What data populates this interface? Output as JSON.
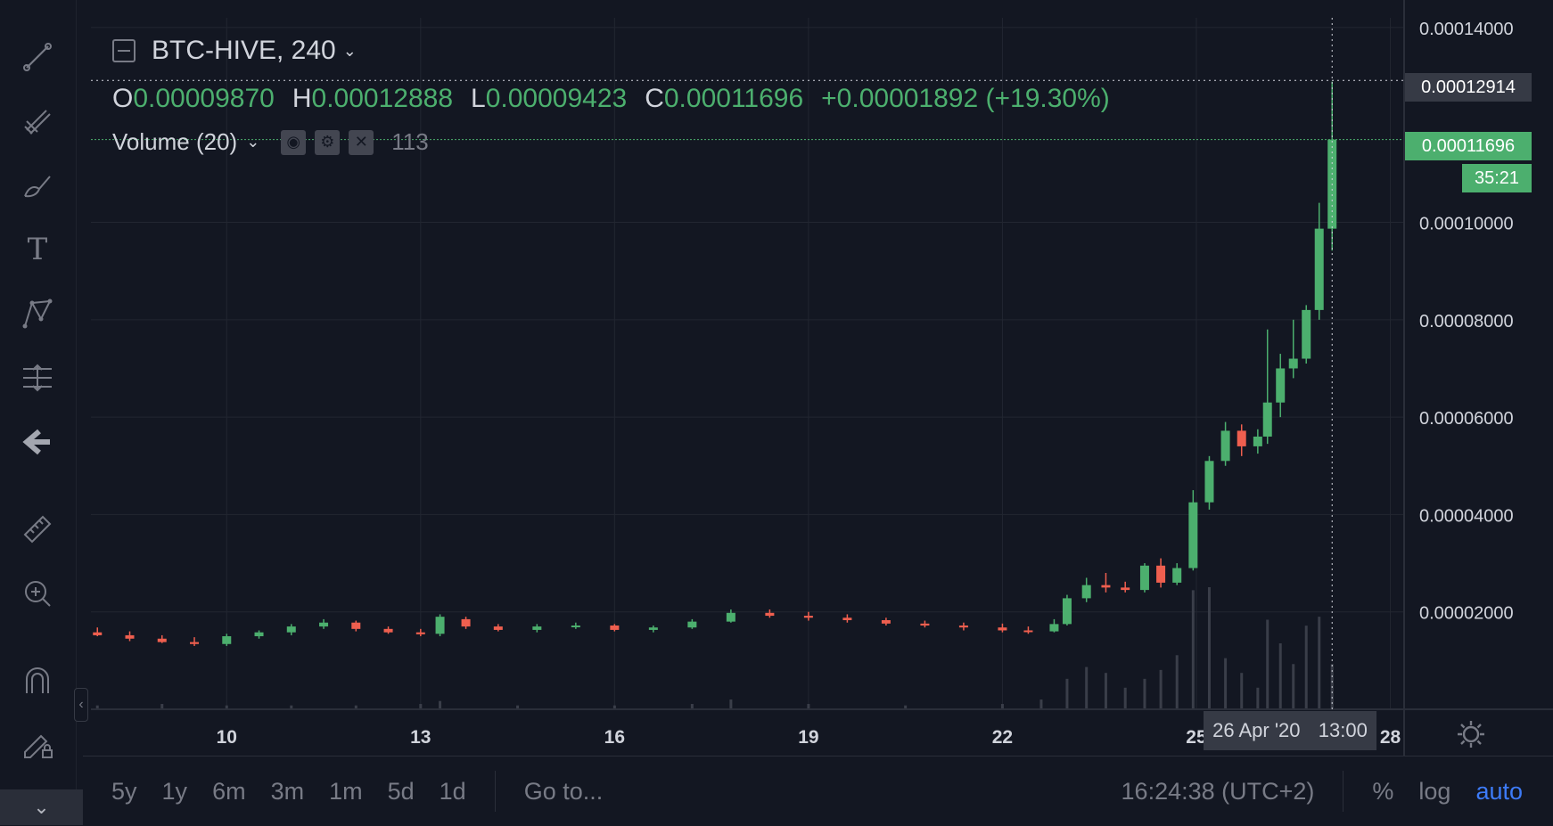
{
  "symbol": {
    "name": "BTC-HIVE, 240"
  },
  "ohlc": {
    "o_label": "O",
    "o": "0.00009870",
    "h_label": "H",
    "h": "0.00012888",
    "l_label": "L",
    "l": "0.00009423",
    "c_label": "C",
    "c": "0.00011696",
    "change": "+0.00001892 (+19.30%)"
  },
  "volume": {
    "label": "Volume (20)",
    "value": "113"
  },
  "price_tags": {
    "crosshair": "0.00012914",
    "last": "0.00011696",
    "countdown": "35:21"
  },
  "crosshair_time": {
    "date": "26 Apr '20",
    "time": "13:00"
  },
  "bottom_bar": {
    "ranges": [
      "5y",
      "1y",
      "6m",
      "3m",
      "1m",
      "5d",
      "1d"
    ],
    "goto": "Go to...",
    "clock": "16:24:38 (UTC+2)",
    "percent": "%",
    "log": "log",
    "auto": "auto"
  },
  "colors": {
    "up": "#4caf6e",
    "down": "#ef5f4f",
    "bg": "#131722",
    "grid": "#222631"
  },
  "icons": [
    "trend-line-icon",
    "pitchfork-icon",
    "brush-icon",
    "text-icon",
    "pattern-icon",
    "measure-icon",
    "back-arrow-icon",
    "ruler-icon",
    "zoom-in-icon",
    "magnet-icon",
    "lock-edit-icon",
    "chevron-down-icon",
    "settings-icon"
  ],
  "chart_data": {
    "type": "candlestick",
    "title": "BTC-HIVE, 240",
    "x_ticks": [
      "10",
      "13",
      "16",
      "19",
      "22",
      "25",
      "28"
    ],
    "y_ticks": [
      "0.00014000",
      "0.00010000",
      "0.00008000",
      "0.00006000",
      "0.00004000",
      "0.00002000"
    ],
    "ylim": [
      0,
      0.000142
    ],
    "x_start": 7.9,
    "x_end": 28.2,
    "candles": [
      {
        "x": 8.0,
        "o": 1.58e-05,
        "h": 1.68e-05,
        "l": 1.5e-05,
        "c": 1.52e-05
      },
      {
        "x": 8.5,
        "o": 1.52e-05,
        "h": 1.6e-05,
        "l": 1.4e-05,
        "c": 1.45e-05
      },
      {
        "x": 9.0,
        "o": 1.45e-05,
        "h": 1.52e-05,
        "l": 1.36e-05,
        "c": 1.38e-05
      },
      {
        "x": 9.5,
        "o": 1.38e-05,
        "h": 1.48e-05,
        "l": 1.3e-05,
        "c": 1.34e-05
      },
      {
        "x": 10.0,
        "o": 1.34e-05,
        "h": 1.55e-05,
        "l": 1.3e-05,
        "c": 1.5e-05
      },
      {
        "x": 10.5,
        "o": 1.5e-05,
        "h": 1.62e-05,
        "l": 1.45e-05,
        "c": 1.58e-05
      },
      {
        "x": 11.0,
        "o": 1.58e-05,
        "h": 1.75e-05,
        "l": 1.52e-05,
        "c": 1.7e-05
      },
      {
        "x": 11.5,
        "o": 1.7e-05,
        "h": 1.85e-05,
        "l": 1.65e-05,
        "c": 1.78e-05
      },
      {
        "x": 12.0,
        "o": 1.78e-05,
        "h": 1.82e-05,
        "l": 1.6e-05,
        "c": 1.65e-05
      },
      {
        "x": 12.5,
        "o": 1.65e-05,
        "h": 1.7e-05,
        "l": 1.55e-05,
        "c": 1.58e-05
      },
      {
        "x": 13.0,
        "o": 1.58e-05,
        "h": 1.65e-05,
        "l": 1.5e-05,
        "c": 1.54e-05
      },
      {
        "x": 13.3,
        "o": 1.55e-05,
        "h": 1.95e-05,
        "l": 1.5e-05,
        "c": 1.9e-05
      },
      {
        "x": 13.7,
        "o": 1.85e-05,
        "h": 1.9e-05,
        "l": 1.65e-05,
        "c": 1.7e-05
      },
      {
        "x": 14.2,
        "o": 1.7e-05,
        "h": 1.75e-05,
        "l": 1.6e-05,
        "c": 1.63e-05
      },
      {
        "x": 14.8,
        "o": 1.63e-05,
        "h": 1.75e-05,
        "l": 1.58e-05,
        "c": 1.7e-05
      },
      {
        "x": 15.4,
        "o": 1.7e-05,
        "h": 1.78e-05,
        "l": 1.65e-05,
        "c": 1.72e-05
      },
      {
        "x": 16.0,
        "o": 1.72e-05,
        "h": 1.75e-05,
        "l": 1.6e-05,
        "c": 1.63e-05
      },
      {
        "x": 16.6,
        "o": 1.63e-05,
        "h": 1.72e-05,
        "l": 1.58e-05,
        "c": 1.68e-05
      },
      {
        "x": 17.2,
        "o": 1.68e-05,
        "h": 1.85e-05,
        "l": 1.65e-05,
        "c": 1.8e-05
      },
      {
        "x": 17.8,
        "o": 1.8e-05,
        "h": 2.05e-05,
        "l": 1.78e-05,
        "c": 1.98e-05
      },
      {
        "x": 18.4,
        "o": 1.98e-05,
        "h": 2.05e-05,
        "l": 1.88e-05,
        "c": 1.92e-05
      },
      {
        "x": 19.0,
        "o": 1.92e-05,
        "h": 2e-05,
        "l": 1.82e-05,
        "c": 1.88e-05
      },
      {
        "x": 19.6,
        "o": 1.88e-05,
        "h": 1.95e-05,
        "l": 1.78e-05,
        "c": 1.83e-05
      },
      {
        "x": 20.2,
        "o": 1.83e-05,
        "h": 1.88e-05,
        "l": 1.72e-05,
        "c": 1.76e-05
      },
      {
        "x": 20.8,
        "o": 1.76e-05,
        "h": 1.82e-05,
        "l": 1.68e-05,
        "c": 1.72e-05
      },
      {
        "x": 21.4,
        "o": 1.72e-05,
        "h": 1.78e-05,
        "l": 1.62e-05,
        "c": 1.68e-05
      },
      {
        "x": 22.0,
        "o": 1.68e-05,
        "h": 1.76e-05,
        "l": 1.58e-05,
        "c": 1.62e-05
      },
      {
        "x": 22.4,
        "o": 1.62e-05,
        "h": 1.7e-05,
        "l": 1.55e-05,
        "c": 1.6e-05
      },
      {
        "x": 22.8,
        "o": 1.6e-05,
        "h": 1.85e-05,
        "l": 1.58e-05,
        "c": 1.75e-05
      },
      {
        "x": 23.0,
        "o": 1.75e-05,
        "h": 2.35e-05,
        "l": 1.72e-05,
        "c": 2.28e-05
      },
      {
        "x": 23.3,
        "o": 2.28e-05,
        "h": 2.7e-05,
        "l": 2.2e-05,
        "c": 2.55e-05
      },
      {
        "x": 23.6,
        "o": 2.55e-05,
        "h": 2.8e-05,
        "l": 2.4e-05,
        "c": 2.5e-05
      },
      {
        "x": 23.9,
        "o": 2.5e-05,
        "h": 2.62e-05,
        "l": 2.4e-05,
        "c": 2.45e-05
      },
      {
        "x": 24.2,
        "o": 2.45e-05,
        "h": 3e-05,
        "l": 2.4e-05,
        "c": 2.95e-05
      },
      {
        "x": 24.45,
        "o": 2.95e-05,
        "h": 3.1e-05,
        "l": 2.5e-05,
        "c": 2.6e-05
      },
      {
        "x": 24.7,
        "o": 2.6e-05,
        "h": 3e-05,
        "l": 2.55e-05,
        "c": 2.9e-05
      },
      {
        "x": 24.95,
        "o": 2.9e-05,
        "h": 4.5e-05,
        "l": 2.85e-05,
        "c": 4.25e-05
      },
      {
        "x": 25.2,
        "o": 4.25e-05,
        "h": 5.2e-05,
        "l": 4.1e-05,
        "c": 5.1e-05
      },
      {
        "x": 25.45,
        "o": 5.1e-05,
        "h": 5.9e-05,
        "l": 5e-05,
        "c": 5.72e-05
      },
      {
        "x": 25.7,
        "o": 5.72e-05,
        "h": 5.85e-05,
        "l": 5.2e-05,
        "c": 5.4e-05
      },
      {
        "x": 25.95,
        "o": 5.4e-05,
        "h": 5.75e-05,
        "l": 5.25e-05,
        "c": 5.6e-05
      },
      {
        "x": 26.1,
        "o": 5.6e-05,
        "h": 7.8e-05,
        "l": 5.45e-05,
        "c": 6.3e-05
      },
      {
        "x": 26.3,
        "o": 6.3e-05,
        "h": 7.3e-05,
        "l": 6e-05,
        "c": 7e-05
      },
      {
        "x": 26.5,
        "o": 7e-05,
        "h": 8e-05,
        "l": 6.8e-05,
        "c": 7.2e-05
      },
      {
        "x": 26.7,
        "o": 7.2e-05,
        "h": 8.3e-05,
        "l": 7.1e-05,
        "c": 8.2e-05
      },
      {
        "x": 26.9,
        "o": 8.2e-05,
        "h": 0.000104,
        "l": 8e-05,
        "c": 9.87e-05
      },
      {
        "x": 27.1,
        "o": 9.87e-05,
        "h": 0.0001289,
        "l": 9.42e-05,
        "c": 0.000117
      }
    ],
    "volumes": [
      {
        "x": 8.0,
        "v": 2
      },
      {
        "x": 9.0,
        "v": 3
      },
      {
        "x": 10.0,
        "v": 2
      },
      {
        "x": 11.0,
        "v": 2
      },
      {
        "x": 12.0,
        "v": 2
      },
      {
        "x": 13.0,
        "v": 3
      },
      {
        "x": 13.3,
        "v": 5
      },
      {
        "x": 14.5,
        "v": 2
      },
      {
        "x": 16.0,
        "v": 2
      },
      {
        "x": 17.2,
        "v": 3
      },
      {
        "x": 17.8,
        "v": 6
      },
      {
        "x": 19.0,
        "v": 3
      },
      {
        "x": 20.5,
        "v": 2
      },
      {
        "x": 22.0,
        "v": 3
      },
      {
        "x": 22.6,
        "v": 6
      },
      {
        "x": 23.0,
        "v": 20
      },
      {
        "x": 23.3,
        "v": 28
      },
      {
        "x": 23.6,
        "v": 24
      },
      {
        "x": 23.9,
        "v": 14
      },
      {
        "x": 24.2,
        "v": 20
      },
      {
        "x": 24.45,
        "v": 26
      },
      {
        "x": 24.7,
        "v": 36
      },
      {
        "x": 24.95,
        "v": 80
      },
      {
        "x": 25.2,
        "v": 82
      },
      {
        "x": 25.45,
        "v": 34
      },
      {
        "x": 25.7,
        "v": 24
      },
      {
        "x": 25.95,
        "v": 14
      },
      {
        "x": 26.1,
        "v": 60
      },
      {
        "x": 26.3,
        "v": 44
      },
      {
        "x": 26.5,
        "v": 30
      },
      {
        "x": 26.7,
        "v": 56
      },
      {
        "x": 26.9,
        "v": 62
      },
      {
        "x": 27.1,
        "v": 30
      }
    ]
  }
}
